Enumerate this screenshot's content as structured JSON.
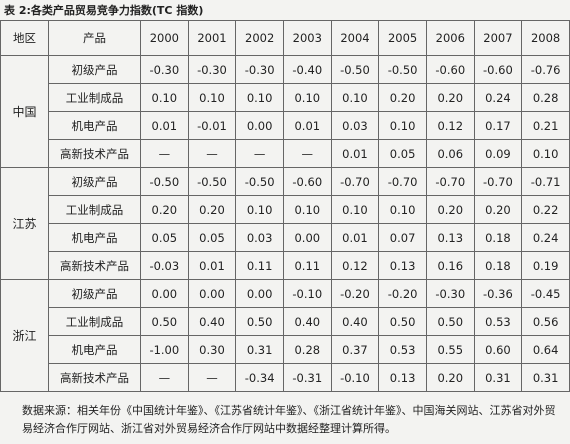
{
  "title": "表 2:各类产品贸易竞争力指数(TC 指数)",
  "table": {
    "header": [
      "地区",
      "产品",
      "2000",
      "2001",
      "2002",
      "2003",
      "2004",
      "2005",
      "2006",
      "2007",
      "2008"
    ],
    "regions": [
      {
        "name": "中国",
        "rows": [
          {
            "product": "初级产品",
            "values": [
              "-0.30",
              "-0.30",
              "-0.30",
              "-0.40",
              "-0.50",
              "-0.50",
              "-0.60",
              "-0.60",
              "-0.76"
            ]
          },
          {
            "product": "工业制成品",
            "values": [
              "0.10",
              "0.10",
              "0.10",
              "0.10",
              "0.10",
              "0.20",
              "0.20",
              "0.24",
              "0.28"
            ]
          },
          {
            "product": "机电产品",
            "values": [
              "0.01",
              "-0.01",
              "0.00",
              "0.01",
              "0.03",
              "0.10",
              "0.12",
              "0.17",
              "0.21"
            ]
          },
          {
            "product": "高新技术产品",
            "values": [
              "—",
              "—",
              "—",
              "—",
              "0.01",
              "0.05",
              "0.06",
              "0.09",
              "0.10"
            ]
          }
        ]
      },
      {
        "name": "江苏",
        "rows": [
          {
            "product": "初级产品",
            "values": [
              "-0.50",
              "-0.50",
              "-0.50",
              "-0.60",
              "-0.70",
              "-0.70",
              "-0.70",
              "-0.70",
              "-0.71"
            ]
          },
          {
            "product": "工业制成品",
            "values": [
              "0.20",
              "0.20",
              "0.10",
              "0.10",
              "0.10",
              "0.10",
              "0.20",
              "0.20",
              "0.22"
            ]
          },
          {
            "product": "机电产品",
            "values": [
              "0.05",
              "0.05",
              "0.03",
              "0.00",
              "0.01",
              "0.07",
              "0.13",
              "0.18",
              "0.24"
            ]
          },
          {
            "product": "高新技术产品",
            "values": [
              "-0.03",
              "0.01",
              "0.11",
              "0.11",
              "0.12",
              "0.13",
              "0.16",
              "0.18",
              "0.19"
            ]
          }
        ]
      },
      {
        "name": "浙江",
        "rows": [
          {
            "product": "初级产品",
            "values": [
              "0.00",
              "0.00",
              "0.00",
              "-0.10",
              "-0.20",
              "-0.20",
              "-0.30",
              "-0.36",
              "-0.45"
            ]
          },
          {
            "product": "工业制成品",
            "values": [
              "0.50",
              "0.40",
              "0.50",
              "0.40",
              "0.40",
              "0.50",
              "0.50",
              "0.53",
              "0.56"
            ]
          },
          {
            "product": "机电产品",
            "values": [
              "-1.00",
              "0.30",
              "0.31",
              "0.28",
              "0.37",
              "0.53",
              "0.55",
              "0.60",
              "0.64"
            ]
          },
          {
            "product": "高新技术产品",
            "values": [
              "—",
              "—",
              "-0.34",
              "-0.31",
              "-0.10",
              "0.13",
              "0.20",
              "0.31",
              "0.31"
            ]
          }
        ]
      }
    ]
  },
  "source": "数据来源：相关年份《中国统计年鉴》、《江苏省统计年鉴》、《浙江省统计年鉴》、中国海关网站、江苏省对外贸易经济合作厅网站、浙江省对外贸易经济合作厅网站中数据经整理计算所得。"
}
